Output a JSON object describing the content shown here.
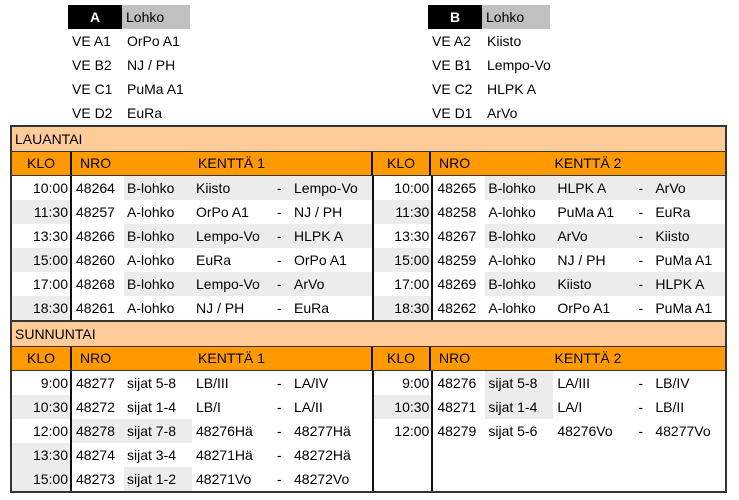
{
  "groups": [
    {
      "letter": "A",
      "header": "Lohko",
      "entries": [
        [
          "VE A1",
          "OrPo A1"
        ],
        [
          "VE B2",
          "NJ / PH"
        ],
        [
          "VE C1",
          "PuMa A1"
        ],
        [
          "VE D2",
          "EuRa"
        ]
      ]
    },
    {
      "letter": "B",
      "header": "Lohko",
      "entries": [
        [
          "VE A2",
          "Kiisto"
        ],
        [
          "VE B1",
          "Lempo-Vo"
        ],
        [
          "VE C2",
          "HLPK A"
        ],
        [
          "VE D1",
          "ArVo"
        ]
      ]
    }
  ],
  "headers": {
    "klo": "KLO",
    "nro": "NRO",
    "field1": "KENTTÄ 1",
    "field2": "KENTTÄ 2",
    "dash": "-"
  },
  "days": [
    {
      "name": "LAUANTAI",
      "field1": [
        [
          "10:00",
          "48264",
          "B-lohko",
          "Kiisto",
          "Lempo-Vo"
        ],
        [
          "11:30",
          "48257",
          "A-lohko",
          "OrPo A1",
          "NJ / PH"
        ],
        [
          "13:30",
          "48266",
          "B-lohko",
          "Lempo-Vo",
          "HLPK A"
        ],
        [
          "15:00",
          "48260",
          "A-lohko",
          "EuRa",
          "OrPo A1"
        ],
        [
          "17:00",
          "48268",
          "B-lohko",
          "Lempo-Vo",
          "ArVo"
        ],
        [
          "18:30",
          "48261",
          "A-lohko",
          "NJ / PH",
          "EuRa"
        ]
      ],
      "field2": [
        [
          "10:00",
          "48265",
          "B-lohko",
          "HLPK A",
          "ArVo"
        ],
        [
          "11:30",
          "48258",
          "A-lohko",
          "PuMa A1",
          "EuRa"
        ],
        [
          "13:30",
          "48267",
          "B-lohko",
          "ArVo",
          "Kiisto"
        ],
        [
          "15:00",
          "48259",
          "A-lohko",
          "NJ / PH",
          "PuMa A1"
        ],
        [
          "17:00",
          "48269",
          "B-lohko",
          "Kiisto",
          "HLPK A"
        ],
        [
          "18:30",
          "48262",
          "A-lohko",
          "OrPo A1",
          "PuMa A1"
        ]
      ]
    },
    {
      "name": "SUNNUNTAI",
      "field1": [
        [
          "9:00",
          "48277",
          "sijat 5-8",
          "LB/III",
          "LA/IV"
        ],
        [
          "10:30",
          "48272",
          "sijat 1-4",
          "LB/I",
          "LA/II"
        ],
        [
          "12:00",
          "48278",
          "sijat 7-8",
          "48276Hä",
          "48277Hä"
        ],
        [
          "13:30",
          "48274",
          "sijat 3-4",
          "48271Hä",
          "48272Hä"
        ],
        [
          "15:00",
          "48273",
          "sijat 1-2",
          "48271Vo",
          "48272Vo"
        ]
      ],
      "field2": [
        [
          "9:00",
          "48276",
          "sijat 5-8",
          "LA/III",
          "LB/IV"
        ],
        [
          "10:30",
          "48271",
          "sijat 1-4",
          "LA/I",
          "LB/II"
        ],
        [
          "12:00",
          "48279",
          "sijat 5-6",
          "48276Vo",
          "48277Vo"
        ]
      ]
    }
  ]
}
